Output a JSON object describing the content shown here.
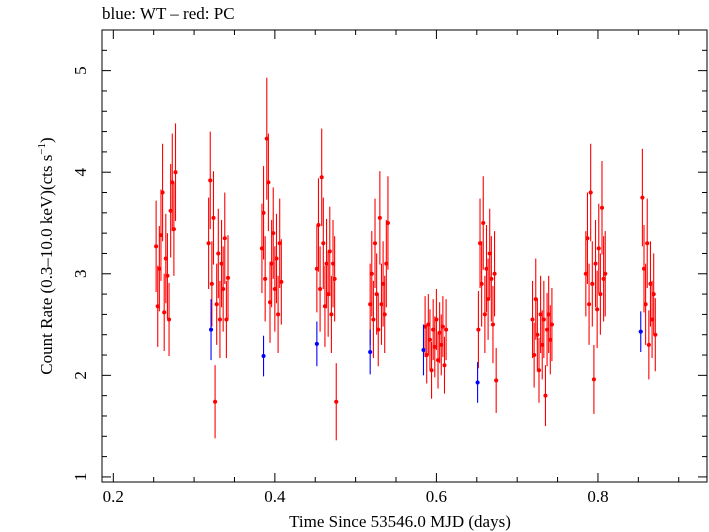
{
  "header": {
    "title": "blue: WT – red: PC"
  },
  "chart_data": {
    "type": "scatter",
    "title": "blue: WT – red: PC",
    "xlabel": "Time Since 53546.0 MJD (days)",
    "ylabel_main": "Count Rate (0.3–10.0 keV)(cts s",
    "ylabel_exp": "−1",
    "ylabel_end": ")",
    "xlim": [
      0.186,
      0.935
    ],
    "ylim": [
      0.95,
      5.4
    ],
    "xticks": [
      0.2,
      0.4,
      0.6,
      0.8
    ],
    "xtick_labels": [
      "0.2",
      "0.4",
      "0.6",
      "0.8"
    ],
    "yticks": [
      1,
      2,
      3,
      4,
      5
    ],
    "ytick_labels": [
      "1",
      "2",
      "3",
      "4",
      "5"
    ],
    "grid": false,
    "series": [
      {
        "color": "#0000ff",
        "points": [
          {
            "x": 0.321,
            "y": 2.45,
            "err": 0.3
          },
          {
            "x": 0.386,
            "y": 2.19,
            "err": 0.2
          },
          {
            "x": 0.452,
            "y": 2.31,
            "err": 0.22
          },
          {
            "x": 0.518,
            "y": 2.23,
            "err": 0.22
          },
          {
            "x": 0.584,
            "y": 2.25,
            "err": 0.25
          },
          {
            "x": 0.651,
            "y": 1.93,
            "err": 0.2
          },
          {
            "x": 0.853,
            "y": 2.43,
            "err": 0.2
          }
        ]
      },
      {
        "color": "#ff0000",
        "points": [
          {
            "x": 0.253,
            "y": 3.27,
            "err": 0.45
          },
          {
            "x": 0.255,
            "y": 2.68,
            "err": 0.4
          },
          {
            "x": 0.257,
            "y": 3.05,
            "err": 0.42
          },
          {
            "x": 0.259,
            "y": 3.38,
            "err": 0.45
          },
          {
            "x": 0.261,
            "y": 3.8,
            "err": 0.48
          },
          {
            "x": 0.263,
            "y": 2.62,
            "err": 0.38
          },
          {
            "x": 0.265,
            "y": 3.15,
            "err": 0.44
          },
          {
            "x": 0.267,
            "y": 2.98,
            "err": 0.42
          },
          {
            "x": 0.269,
            "y": 2.55,
            "err": 0.36
          },
          {
            "x": 0.271,
            "y": 3.62,
            "err": 0.46
          },
          {
            "x": 0.273,
            "y": 3.9,
            "err": 0.48
          },
          {
            "x": 0.275,
            "y": 3.44,
            "err": 0.46
          },
          {
            "x": 0.277,
            "y": 4.0,
            "err": 0.48
          },
          {
            "x": 0.318,
            "y": 3.3,
            "err": 0.45
          },
          {
            "x": 0.32,
            "y": 3.92,
            "err": 0.48
          },
          {
            "x": 0.322,
            "y": 2.9,
            "err": 0.42
          },
          {
            "x": 0.324,
            "y": 3.55,
            "err": 0.46
          },
          {
            "x": 0.326,
            "y": 1.74,
            "err": 0.36
          },
          {
            "x": 0.328,
            "y": 2.7,
            "err": 0.4
          },
          {
            "x": 0.33,
            "y": 3.2,
            "err": 0.44
          },
          {
            "x": 0.332,
            "y": 2.55,
            "err": 0.38
          },
          {
            "x": 0.334,
            "y": 3.1,
            "err": 0.43
          },
          {
            "x": 0.336,
            "y": 2.85,
            "err": 0.42
          },
          {
            "x": 0.338,
            "y": 3.35,
            "err": 0.45
          },
          {
            "x": 0.34,
            "y": 2.55,
            "err": 0.38
          },
          {
            "x": 0.342,
            "y": 2.96,
            "err": 0.42
          },
          {
            "x": 0.384,
            "y": 3.25,
            "err": 0.44
          },
          {
            "x": 0.386,
            "y": 3.6,
            "err": 0.46
          },
          {
            "x": 0.388,
            "y": 2.95,
            "err": 0.42
          },
          {
            "x": 0.39,
            "y": 4.33,
            "err": 0.6
          },
          {
            "x": 0.392,
            "y": 3.9,
            "err": 0.48
          },
          {
            "x": 0.394,
            "y": 2.72,
            "err": 0.4
          },
          {
            "x": 0.396,
            "y": 3.1,
            "err": 0.43
          },
          {
            "x": 0.398,
            "y": 3.4,
            "err": 0.45
          },
          {
            "x": 0.4,
            "y": 2.85,
            "err": 0.42
          },
          {
            "x": 0.402,
            "y": 3.15,
            "err": 0.44
          },
          {
            "x": 0.404,
            "y": 2.6,
            "err": 0.38
          },
          {
            "x": 0.406,
            "y": 3.3,
            "err": 0.44
          },
          {
            "x": 0.408,
            "y": 2.92,
            "err": 0.42
          },
          {
            "x": 0.452,
            "y": 3.05,
            "err": 0.43
          },
          {
            "x": 0.454,
            "y": 3.48,
            "err": 0.46
          },
          {
            "x": 0.456,
            "y": 2.85,
            "err": 0.42
          },
          {
            "x": 0.458,
            "y": 3.95,
            "err": 0.48
          },
          {
            "x": 0.46,
            "y": 3.3,
            "err": 0.45
          },
          {
            "x": 0.462,
            "y": 2.68,
            "err": 0.4
          },
          {
            "x": 0.464,
            "y": 3.1,
            "err": 0.44
          },
          {
            "x": 0.466,
            "y": 2.8,
            "err": 0.42
          },
          {
            "x": 0.468,
            "y": 3.22,
            "err": 0.44
          },
          {
            "x": 0.47,
            "y": 2.6,
            "err": 0.38
          },
          {
            "x": 0.472,
            "y": 3.1,
            "err": 0.43
          },
          {
            "x": 0.474,
            "y": 2.95,
            "err": 0.42
          },
          {
            "x": 0.476,
            "y": 1.74,
            "err": 0.38
          },
          {
            "x": 0.518,
            "y": 2.7,
            "err": 0.4
          },
          {
            "x": 0.52,
            "y": 3.0,
            "err": 0.42
          },
          {
            "x": 0.522,
            "y": 2.55,
            "err": 0.38
          },
          {
            "x": 0.524,
            "y": 3.3,
            "err": 0.44
          },
          {
            "x": 0.526,
            "y": 2.8,
            "err": 0.4
          },
          {
            "x": 0.528,
            "y": 2.45,
            "err": 0.36
          },
          {
            "x": 0.53,
            "y": 3.55,
            "err": 0.46
          },
          {
            "x": 0.532,
            "y": 2.7,
            "err": 0.4
          },
          {
            "x": 0.534,
            "y": 2.9,
            "err": 0.42
          },
          {
            "x": 0.536,
            "y": 2.6,
            "err": 0.38
          },
          {
            "x": 0.538,
            "y": 3.1,
            "err": 0.43
          },
          {
            "x": 0.54,
            "y": 3.5,
            "err": 0.46
          },
          {
            "x": 0.586,
            "y": 2.48,
            "err": 0.3
          },
          {
            "x": 0.588,
            "y": 2.2,
            "err": 0.28
          },
          {
            "x": 0.59,
            "y": 2.5,
            "err": 0.3
          },
          {
            "x": 0.592,
            "y": 2.35,
            "err": 0.3
          },
          {
            "x": 0.594,
            "y": 2.05,
            "err": 0.28
          },
          {
            "x": 0.596,
            "y": 2.45,
            "err": 0.3
          },
          {
            "x": 0.598,
            "y": 2.28,
            "err": 0.3
          },
          {
            "x": 0.6,
            "y": 2.55,
            "err": 0.3
          },
          {
            "x": 0.602,
            "y": 2.15,
            "err": 0.28
          },
          {
            "x": 0.604,
            "y": 2.42,
            "err": 0.3
          },
          {
            "x": 0.606,
            "y": 2.3,
            "err": 0.3
          },
          {
            "x": 0.608,
            "y": 2.48,
            "err": 0.3
          },
          {
            "x": 0.61,
            "y": 2.1,
            "err": 0.28
          },
          {
            "x": 0.612,
            "y": 2.45,
            "err": 0.3
          },
          {
            "x": 0.652,
            "y": 2.45,
            "err": 0.38
          },
          {
            "x": 0.654,
            "y": 3.3,
            "err": 0.44
          },
          {
            "x": 0.656,
            "y": 2.9,
            "err": 0.42
          },
          {
            "x": 0.658,
            "y": 3.5,
            "err": 0.46
          },
          {
            "x": 0.66,
            "y": 2.6,
            "err": 0.38
          },
          {
            "x": 0.662,
            "y": 3.05,
            "err": 0.43
          },
          {
            "x": 0.664,
            "y": 2.75,
            "err": 0.4
          },
          {
            "x": 0.666,
            "y": 3.2,
            "err": 0.44
          },
          {
            "x": 0.668,
            "y": 2.95,
            "err": 0.42
          },
          {
            "x": 0.67,
            "y": 2.5,
            "err": 0.38
          },
          {
            "x": 0.672,
            "y": 3.0,
            "err": 0.42
          },
          {
            "x": 0.674,
            "y": 1.95,
            "err": 0.32
          },
          {
            "x": 0.719,
            "y": 2.55,
            "err": 0.38
          },
          {
            "x": 0.721,
            "y": 2.2,
            "err": 0.32
          },
          {
            "x": 0.723,
            "y": 2.75,
            "err": 0.4
          },
          {
            "x": 0.725,
            "y": 2.4,
            "err": 0.36
          },
          {
            "x": 0.727,
            "y": 2.05,
            "err": 0.32
          },
          {
            "x": 0.729,
            "y": 2.6,
            "err": 0.38
          },
          {
            "x": 0.731,
            "y": 2.3,
            "err": 0.34
          },
          {
            "x": 0.733,
            "y": 2.55,
            "err": 0.38
          },
          {
            "x": 0.735,
            "y": 1.8,
            "err": 0.3
          },
          {
            "x": 0.737,
            "y": 2.45,
            "err": 0.36
          },
          {
            "x": 0.739,
            "y": 2.6,
            "err": 0.38
          },
          {
            "x": 0.741,
            "y": 2.35,
            "err": 0.34
          },
          {
            "x": 0.743,
            "y": 2.5,
            "err": 0.36
          },
          {
            "x": 0.785,
            "y": 3.0,
            "err": 0.42
          },
          {
            "x": 0.787,
            "y": 3.35,
            "err": 0.45
          },
          {
            "x": 0.789,
            "y": 2.7,
            "err": 0.4
          },
          {
            "x": 0.791,
            "y": 3.8,
            "err": 0.48
          },
          {
            "x": 0.793,
            "y": 2.9,
            "err": 0.42
          },
          {
            "x": 0.795,
            "y": 1.96,
            "err": 0.34
          },
          {
            "x": 0.797,
            "y": 3.1,
            "err": 0.43
          },
          {
            "x": 0.799,
            "y": 2.65,
            "err": 0.38
          },
          {
            "x": 0.801,
            "y": 3.25,
            "err": 0.44
          },
          {
            "x": 0.803,
            "y": 2.8,
            "err": 0.4
          },
          {
            "x": 0.805,
            "y": 3.65,
            "err": 0.46
          },
          {
            "x": 0.807,
            "y": 2.95,
            "err": 0.42
          },
          {
            "x": 0.809,
            "y": 3.0,
            "err": 0.42
          },
          {
            "x": 0.855,
            "y": 3.75,
            "err": 0.48
          },
          {
            "x": 0.857,
            "y": 3.05,
            "err": 0.43
          },
          {
            "x": 0.859,
            "y": 2.7,
            "err": 0.4
          },
          {
            "x": 0.861,
            "y": 3.3,
            "err": 0.44
          },
          {
            "x": 0.863,
            "y": 2.3,
            "err": 0.34
          },
          {
            "x": 0.865,
            "y": 2.9,
            "err": 0.42
          },
          {
            "x": 0.867,
            "y": 2.55,
            "err": 0.38
          },
          {
            "x": 0.869,
            "y": 2.8,
            "err": 0.4
          },
          {
            "x": 0.871,
            "y": 2.4,
            "err": 0.36
          }
        ]
      }
    ]
  }
}
